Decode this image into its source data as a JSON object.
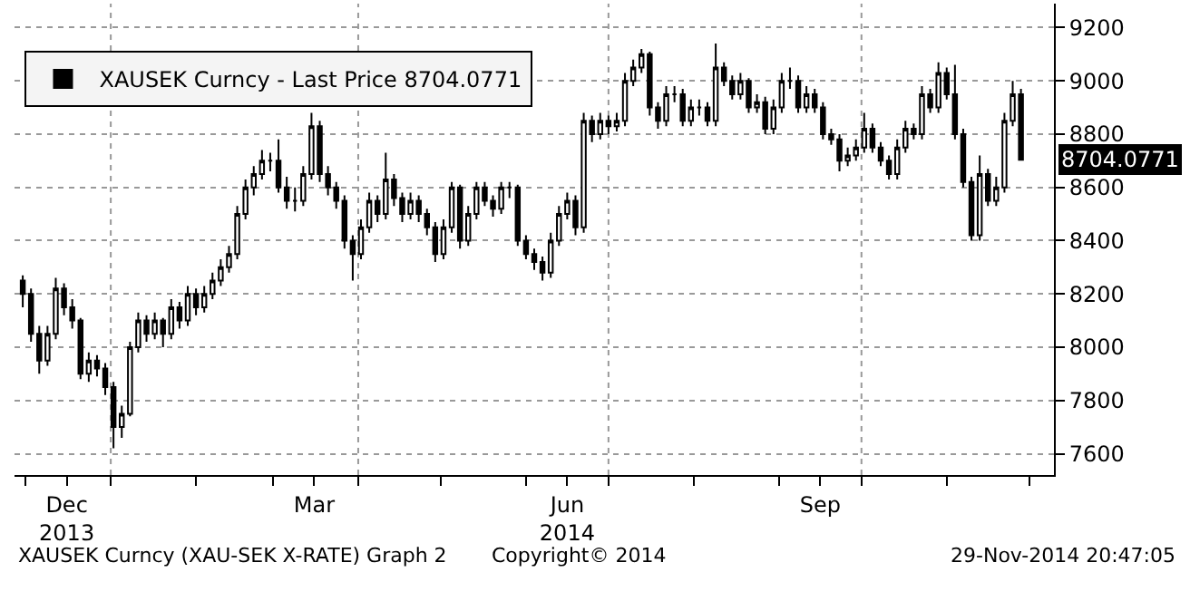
{
  "chart_data": {
    "type": "candlestick",
    "x": [
      "2013-11-30",
      "2013-12-03",
      "2013-12-06",
      "2013-12-09",
      "2013-12-12",
      "2013-12-15",
      "2013-12-18",
      "2013-12-21",
      "2013-12-24",
      "2013-12-27",
      "2013-12-30",
      "2014-01-02",
      "2014-01-05",
      "2014-01-08",
      "2014-01-11",
      "2014-01-14",
      "2014-01-17",
      "2014-01-20",
      "2014-01-23",
      "2014-01-26",
      "2014-01-29",
      "2014-02-01",
      "2014-02-04",
      "2014-02-07",
      "2014-02-10",
      "2014-02-13",
      "2014-02-16",
      "2014-02-19",
      "2014-02-22",
      "2014-02-25",
      "2014-02-28",
      "2014-03-03",
      "2014-03-06",
      "2014-03-09",
      "2014-03-12",
      "2014-03-15",
      "2014-03-18",
      "2014-03-21",
      "2014-03-24",
      "2014-03-27",
      "2014-03-30",
      "2014-04-02",
      "2014-04-05",
      "2014-04-08",
      "2014-04-11",
      "2014-04-14",
      "2014-04-17",
      "2014-04-20",
      "2014-04-23",
      "2014-04-26",
      "2014-04-29",
      "2014-05-02",
      "2014-05-05",
      "2014-05-08",
      "2014-05-11",
      "2014-05-14",
      "2014-05-17",
      "2014-05-20",
      "2014-05-23",
      "2014-05-26",
      "2014-05-29",
      "2014-06-01",
      "2014-06-04",
      "2014-06-07",
      "2014-06-10",
      "2014-06-13",
      "2014-06-16",
      "2014-06-19",
      "2014-06-22",
      "2014-06-25",
      "2014-06-28",
      "2014-07-01",
      "2014-07-04",
      "2014-07-07",
      "2014-07-10",
      "2014-07-13",
      "2014-07-16",
      "2014-07-19",
      "2014-07-22",
      "2014-07-25",
      "2014-07-28",
      "2014-07-31",
      "2014-08-03",
      "2014-08-06",
      "2014-08-09",
      "2014-08-12",
      "2014-08-15",
      "2014-08-18",
      "2014-08-21",
      "2014-08-24",
      "2014-08-27",
      "2014-08-30",
      "2014-09-02",
      "2014-09-05",
      "2014-09-08",
      "2014-09-11",
      "2014-09-14",
      "2014-09-17",
      "2014-09-20",
      "2014-09-23",
      "2014-09-26",
      "2014-09-29",
      "2014-10-02",
      "2014-10-05",
      "2014-10-08",
      "2014-10-11",
      "2014-10-14",
      "2014-10-17",
      "2014-10-20",
      "2014-10-23",
      "2014-10-26",
      "2014-10-29",
      "2014-11-01",
      "2014-11-04",
      "2014-11-07",
      "2014-11-10",
      "2014-11-13",
      "2014-11-16",
      "2014-11-19",
      "2014-11-22",
      "2014-11-25",
      "2014-11-28"
    ],
    "series": [
      {
        "name": "XAUSEK Curncy - Last Price 8704.0771",
        "color": "#000000",
        "ohlc": [
          [
            8250,
            8270,
            8150,
            8200
          ],
          [
            8200,
            8220,
            8020,
            8050
          ],
          [
            8050,
            8080,
            7900,
            7950
          ],
          [
            7950,
            8080,
            7930,
            8050
          ],
          [
            8050,
            8260,
            8030,
            8220
          ],
          [
            8220,
            8240,
            8120,
            8150
          ],
          [
            8150,
            8180,
            8070,
            8100
          ],
          [
            8100,
            8110,
            7880,
            7900
          ],
          [
            7900,
            7980,
            7870,
            7950
          ],
          [
            7950,
            7970,
            7890,
            7920
          ],
          [
            7920,
            7940,
            7820,
            7850
          ],
          [
            7850,
            7870,
            7620,
            7700
          ],
          [
            7700,
            7780,
            7660,
            7750
          ],
          [
            7750,
            8020,
            7740,
            8000
          ],
          [
            8000,
            8130,
            7980,
            8100
          ],
          [
            8100,
            8120,
            8020,
            8050
          ],
          [
            8050,
            8130,
            8030,
            8100
          ],
          [
            8100,
            8110,
            8000,
            8050
          ],
          [
            8050,
            8180,
            8030,
            8150
          ],
          [
            8150,
            8170,
            8070,
            8100
          ],
          [
            8100,
            8230,
            8080,
            8200
          ],
          [
            8200,
            8220,
            8120,
            8150
          ],
          [
            8150,
            8230,
            8130,
            8200
          ],
          [
            8200,
            8280,
            8180,
            8250
          ],
          [
            8250,
            8330,
            8230,
            8300
          ],
          [
            8300,
            8380,
            8280,
            8350
          ],
          [
            8350,
            8530,
            8330,
            8500
          ],
          [
            8500,
            8630,
            8480,
            8600
          ],
          [
            8600,
            8680,
            8570,
            8650
          ],
          [
            8650,
            8740,
            8630,
            8700
          ],
          [
            8700,
            8730,
            8660,
            8700
          ],
          [
            8700,
            8780,
            8580,
            8600
          ],
          [
            8600,
            8640,
            8520,
            8550
          ],
          [
            8550,
            8600,
            8510,
            8550
          ],
          [
            8550,
            8680,
            8530,
            8650
          ],
          [
            8650,
            8880,
            8630,
            8830
          ],
          [
            8830,
            8850,
            8620,
            8650
          ],
          [
            8650,
            8680,
            8570,
            8600
          ],
          [
            8600,
            8620,
            8520,
            8550
          ],
          [
            8550,
            8570,
            8370,
            8400
          ],
          [
            8400,
            8420,
            8250,
            8350
          ],
          [
            8350,
            8480,
            8330,
            8450
          ],
          [
            8450,
            8580,
            8430,
            8550
          ],
          [
            8550,
            8570,
            8470,
            8500
          ],
          [
            8500,
            8730,
            8480,
            8630
          ],
          [
            8630,
            8650,
            8530,
            8560
          ],
          [
            8560,
            8580,
            8470,
            8500
          ],
          [
            8500,
            8580,
            8480,
            8550
          ],
          [
            8550,
            8570,
            8470,
            8500
          ],
          [
            8500,
            8520,
            8420,
            8450
          ],
          [
            8450,
            8470,
            8320,
            8350
          ],
          [
            8350,
            8480,
            8330,
            8450
          ],
          [
            8450,
            8620,
            8430,
            8600
          ],
          [
            8600,
            8610,
            8370,
            8400
          ],
          [
            8400,
            8530,
            8380,
            8500
          ],
          [
            8500,
            8620,
            8480,
            8600
          ],
          [
            8600,
            8620,
            8530,
            8550
          ],
          [
            8550,
            8570,
            8490,
            8520
          ],
          [
            8520,
            8620,
            8500,
            8600
          ],
          [
            8600,
            8620,
            8560,
            8600
          ],
          [
            8600,
            8610,
            8380,
            8400
          ],
          [
            8400,
            8420,
            8330,
            8350
          ],
          [
            8350,
            8370,
            8290,
            8320
          ],
          [
            8320,
            8340,
            8250,
            8280
          ],
          [
            8280,
            8430,
            8260,
            8400
          ],
          [
            8400,
            8530,
            8380,
            8500
          ],
          [
            8500,
            8580,
            8480,
            8550
          ],
          [
            8550,
            8570,
            8420,
            8450
          ],
          [
            8450,
            8880,
            8430,
            8850
          ],
          [
            8850,
            8870,
            8770,
            8800
          ],
          [
            8800,
            8880,
            8780,
            8850
          ],
          [
            8850,
            8870,
            8800,
            8830
          ],
          [
            8830,
            8880,
            8810,
            8850
          ],
          [
            8850,
            9030,
            8830,
            9000
          ],
          [
            9000,
            9080,
            8980,
            9050
          ],
          [
            9050,
            9120,
            9030,
            9100
          ],
          [
            9100,
            9110,
            8870,
            8900
          ],
          [
            8900,
            8920,
            8820,
            8850
          ],
          [
            8850,
            8980,
            8830,
            8950
          ],
          [
            8950,
            8980,
            8920,
            8950
          ],
          [
            8950,
            8970,
            8830,
            8850
          ],
          [
            8850,
            8930,
            8830,
            8900
          ],
          [
            8900,
            8930,
            8870,
            8900
          ],
          [
            8900,
            8920,
            8830,
            8850
          ],
          [
            8850,
            9140,
            8830,
            9050
          ],
          [
            9050,
            9070,
            8980,
            9000
          ],
          [
            9000,
            9020,
            8930,
            8950
          ],
          [
            8950,
            9030,
            8930,
            9000
          ],
          [
            9000,
            9010,
            8880,
            8900
          ],
          [
            8900,
            8950,
            8880,
            8920
          ],
          [
            8920,
            8940,
            8800,
            8820
          ],
          [
            8820,
            8930,
            8800,
            8900
          ],
          [
            8900,
            9030,
            8880,
            9000
          ],
          [
            9000,
            9050,
            8970,
            9000
          ],
          [
            9000,
            9020,
            8880,
            8900
          ],
          [
            8900,
            8980,
            8880,
            8950
          ],
          [
            8950,
            8970,
            8880,
            8900
          ],
          [
            8900,
            8920,
            8780,
            8800
          ],
          [
            8800,
            8820,
            8760,
            8780
          ],
          [
            8780,
            8800,
            8660,
            8700
          ],
          [
            8700,
            8750,
            8680,
            8720
          ],
          [
            8720,
            8780,
            8700,
            8750
          ],
          [
            8750,
            8880,
            8730,
            8820
          ],
          [
            8820,
            8840,
            8730,
            8750
          ],
          [
            8750,
            8770,
            8680,
            8700
          ],
          [
            8700,
            8720,
            8630,
            8650
          ],
          [
            8650,
            8780,
            8630,
            8750
          ],
          [
            8750,
            8850,
            8730,
            8820
          ],
          [
            8820,
            8840,
            8780,
            8800
          ],
          [
            8800,
            8980,
            8780,
            8950
          ],
          [
            8950,
            8970,
            8880,
            8900
          ],
          [
            8900,
            9070,
            8880,
            9030
          ],
          [
            9030,
            9050,
            8930,
            8950
          ],
          [
            8950,
            9060,
            8780,
            8800
          ],
          [
            8800,
            8820,
            8600,
            8620
          ],
          [
            8620,
            8640,
            8400,
            8420
          ],
          [
            8420,
            8720,
            8400,
            8650
          ],
          [
            8650,
            8670,
            8530,
            8550
          ],
          [
            8550,
            8640,
            8530,
            8600
          ],
          [
            8600,
            8880,
            8580,
            8850
          ],
          [
            8850,
            9000,
            8830,
            8950
          ],
          [
            8950,
            8970,
            8700,
            8704.0771
          ]
        ]
      }
    ],
    "xlim": [
      "2013-11-27",
      "2014-12-10"
    ],
    "xticks": [
      {
        "value": "2013-12-01",
        "label": null
      },
      {
        "value": "2013-12-16",
        "label": "Dec\n2013"
      },
      {
        "value": "2014-01-01",
        "label": null
      },
      {
        "value": "2014-02-01",
        "label": null
      },
      {
        "value": "2014-03-01",
        "label": null
      },
      {
        "value": "2014-03-16",
        "label": "Mar"
      },
      {
        "value": "2014-04-01",
        "label": null
      },
      {
        "value": "2014-05-01",
        "label": null
      },
      {
        "value": "2014-06-01",
        "label": null
      },
      {
        "value": "2014-06-16",
        "label": "Jun\n2014"
      },
      {
        "value": "2014-07-01",
        "label": null
      },
      {
        "value": "2014-08-01",
        "label": null
      },
      {
        "value": "2014-09-01",
        "label": null
      },
      {
        "value": "2014-09-16",
        "label": "Sep"
      },
      {
        "value": "2014-10-01",
        "label": null
      },
      {
        "value": "2014-11-01",
        "label": null
      },
      {
        "value": "2014-12-01",
        "label": null
      }
    ],
    "ylim": [
      7520,
      9290
    ],
    "yticks": [
      7600,
      7800,
      8000,
      8200,
      8400,
      8600,
      8800,
      9000,
      9200
    ],
    "grid": "y",
    "legend": "top left",
    "ref_lines": [
      {
        "axis": "x",
        "value": "2014-01-01",
        "color": "#999999",
        "line_style": "dotted"
      },
      {
        "axis": "x",
        "value": "2014-04-01",
        "color": "#999999",
        "line_style": "dotted"
      },
      {
        "axis": "x",
        "value": "2014-07-01",
        "color": "#999999",
        "line_style": "dotted"
      },
      {
        "axis": "x",
        "value": "2014-10-01",
        "color": "#999999",
        "line_style": "dotted"
      }
    ],
    "annotations": [
      "XAUSEK Curncy (XAU-SEK X-RATE) Graph 2",
      "Copyright© 2014",
      "29-Nov-2014 20:47:05",
      "8704.0771"
    ]
  }
}
